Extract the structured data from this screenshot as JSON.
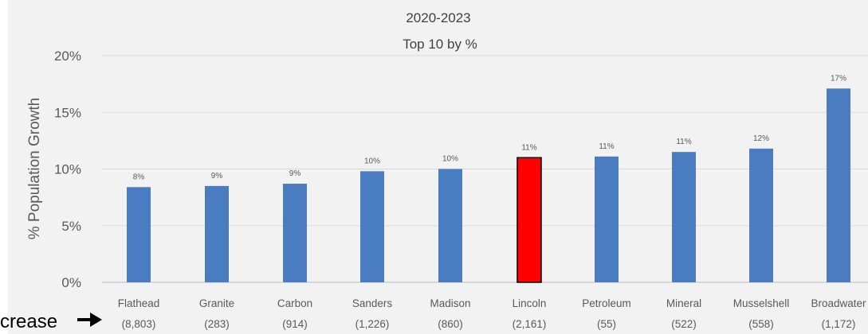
{
  "chart_data": {
    "type": "bar",
    "subtitle_lines": [
      "2020-2023",
      "Top 10 by %"
    ],
    "ylabel": "% Population Growth",
    "ylim": [
      0,
      20
    ],
    "y_ticks": [
      "0%",
      "5%",
      "10%",
      "15%",
      "20%"
    ],
    "grid": true,
    "legend": "none",
    "categories": [
      "Flathead",
      "Granite",
      "Carbon",
      "Sanders",
      "Madison",
      "Lincoln",
      "Petroleum",
      "Mineral",
      "Musselshell",
      "Broadwater"
    ],
    "category_counts": [
      "(8,803)",
      "(283)",
      "(914)",
      "(1,226)",
      "(860)",
      "(2,161)",
      "(55)",
      "(522)",
      "(558)",
      "(1,172)"
    ],
    "values": [
      8.4,
      8.5,
      8.7,
      9.8,
      10.0,
      11.0,
      11.1,
      11.5,
      11.8,
      17.1
    ],
    "data_labels": [
      "8%",
      "9%",
      "9%",
      "10%",
      "10%",
      "11%",
      "11%",
      "11%",
      "12%",
      "17%"
    ],
    "highlight_index": 5,
    "colors": {
      "bar": "#4a7cc2",
      "highlight": "#ff0000",
      "highlight_border": "#000000",
      "grid": "#d9d9d9"
    }
  },
  "side_note": "crease"
}
